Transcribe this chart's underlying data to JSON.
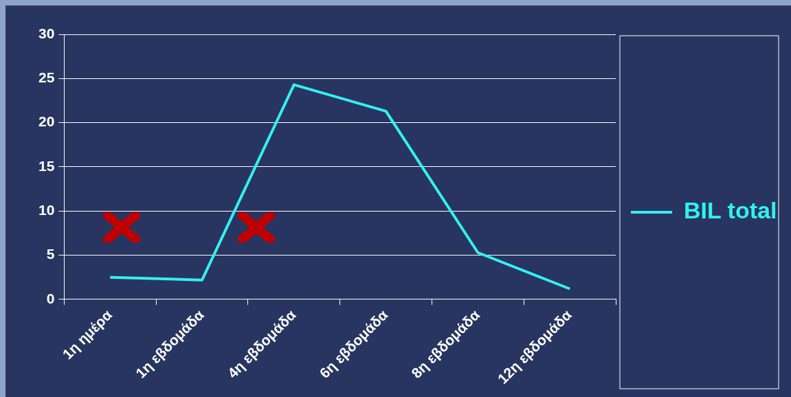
{
  "chart_data": {
    "type": "line",
    "categories": [
      "1η ημέρα",
      "1η εβδομάδα",
      "4η εβδομάδα",
      "6η εβδομάδα",
      "8η εβδομάδα",
      "12η εβδομάδα"
    ],
    "series": [
      {
        "name": "BIL total",
        "color": "#33f0f0",
        "values": [
          2.5,
          2.2,
          24.3,
          21.3,
          5.3,
          1.2
        ]
      }
    ],
    "ylim": [
      0,
      30
    ],
    "yticks": [
      0,
      5,
      10,
      15,
      20,
      25,
      30
    ],
    "grid": "y",
    "legend": "right",
    "marker": "none",
    "line_style": "solid"
  }
}
